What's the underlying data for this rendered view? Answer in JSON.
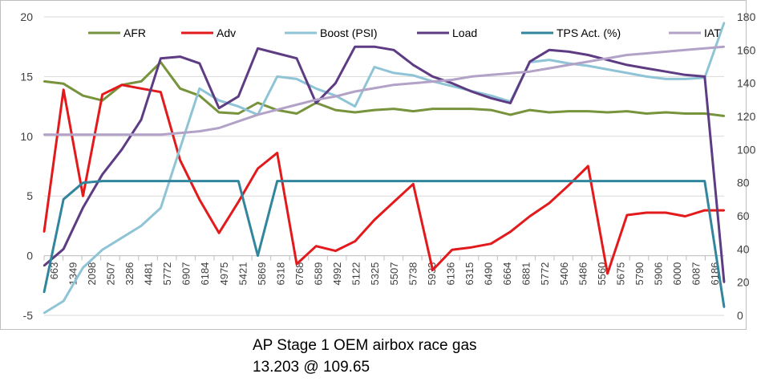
{
  "chart_data": {
    "type": "line",
    "title": "",
    "xlabel": "",
    "ylabel": "",
    "ylim": [
      -5,
      20
    ],
    "y2lim": [
      0,
      180
    ],
    "y_ticks": [
      "-5",
      "0",
      "5",
      "10",
      "15",
      "20"
    ],
    "y2_ticks": [
      "0",
      "20",
      "40",
      "60",
      "80",
      "100",
      "120",
      "140",
      "160",
      "180"
    ],
    "x_tick_labels": [
      "663",
      "1349",
      "2098",
      "2507",
      "3286",
      "4481",
      "5772",
      "6907",
      "6184",
      "4975",
      "5421",
      "5869",
      "6318",
      "6768",
      "6589",
      "4992",
      "5122",
      "5325",
      "5507",
      "5738",
      "5933",
      "6136",
      "6315",
      "6490",
      "6664",
      "6881",
      "5772",
      "5406",
      "5486",
      "5560",
      "5675",
      "5790",
      "5906",
      "6000",
      "6087",
      "6186"
    ],
    "x": [
      0,
      5,
      10,
      15,
      20,
      25,
      30,
      35,
      40,
      45,
      50,
      55,
      60,
      65,
      70,
      75,
      80,
      85,
      90,
      95,
      100,
      105,
      110,
      115,
      120,
      125,
      130,
      135,
      140,
      145,
      150,
      155,
      160,
      165,
      170,
      175
    ],
    "series": [
      {
        "name": "AFR",
        "axis": "left",
        "color": "#77933c",
        "values": [
          14.6,
          14.4,
          13.4,
          13.0,
          14.3,
          14.6,
          16.2,
          14.0,
          13.4,
          12.0,
          11.9,
          12.8,
          12.2,
          11.9,
          12.8,
          12.2,
          12.0,
          12.2,
          12.3,
          12.1,
          12.3,
          12.3,
          12.3,
          12.2,
          11.8,
          12.2,
          12.0,
          12.1,
          12.1,
          12.0,
          12.1,
          11.9,
          12.0,
          11.9,
          11.9,
          11.7
        ]
      },
      {
        "name": "Adv",
        "axis": "left",
        "color": "#e31a1c",
        "values": [
          2.0,
          13.9,
          5.0,
          13.5,
          14.3,
          14.0,
          13.7,
          8.0,
          4.7,
          1.9,
          4.5,
          7.3,
          8.6,
          -0.7,
          0.8,
          0.4,
          1.2,
          3.0,
          4.5,
          6.0,
          -1.2,
          0.5,
          0.7,
          1.0,
          2.0,
          3.3,
          4.4,
          5.9,
          7.5,
          -1.5,
          3.4,
          3.6,
          3.6,
          3.3,
          3.8,
          3.8
        ]
      },
      {
        "name": "Boost (PSI)",
        "axis": "left",
        "color": "#8fc4d6",
        "values": [
          -4.8,
          -3.8,
          -1.0,
          0.5,
          1.5,
          2.5,
          4.0,
          9.0,
          14.0,
          13.0,
          12.5,
          11.8,
          15.0,
          14.8,
          14.0,
          13.4,
          12.5,
          15.8,
          15.3,
          15.1,
          14.6,
          14.2,
          13.8,
          13.4,
          12.9,
          16.2,
          16.4,
          16.1,
          15.9,
          15.6,
          15.3,
          15.0,
          14.8,
          14.8,
          14.9,
          19.5
        ]
      },
      {
        "name": "Load",
        "axis": "right",
        "color": "#5e3c84",
        "values": [
          30,
          40,
          65,
          85,
          100,
          118,
          155,
          156,
          152,
          125,
          132,
          161,
          158,
          155,
          128,
          140,
          162,
          162,
          160,
          151,
          144,
          140,
          135,
          131,
          128,
          153,
          160,
          159,
          157,
          154,
          151,
          149,
          147,
          145,
          144,
          20
        ]
      },
      {
        "name": "TPS Act. (%)",
        "axis": "right",
        "color": "#31859c",
        "values": [
          14,
          70,
          80,
          81,
          81,
          81,
          81,
          81,
          81,
          81,
          81,
          36,
          81,
          81,
          81,
          81,
          81,
          81,
          81,
          81,
          81,
          81,
          81,
          81,
          81,
          81,
          81,
          81,
          81,
          81,
          81,
          81,
          81,
          81,
          81,
          5
        ]
      },
      {
        "name": "IAT",
        "axis": "right",
        "color": "#b3a2c7",
        "values": [
          109,
          109,
          109,
          109,
          109,
          109,
          109,
          110,
          111,
          113,
          117,
          121,
          124,
          127,
          130,
          132,
          135,
          137,
          139,
          140,
          141,
          142,
          144,
          145,
          146,
          147,
          149,
          151,
          153,
          155,
          157,
          158,
          159,
          160,
          161,
          162
        ]
      }
    ]
  },
  "caption": {
    "line1": "AP Stage 1 OEM airbox  race gas",
    "line2": "13.203 @ 109.65"
  }
}
